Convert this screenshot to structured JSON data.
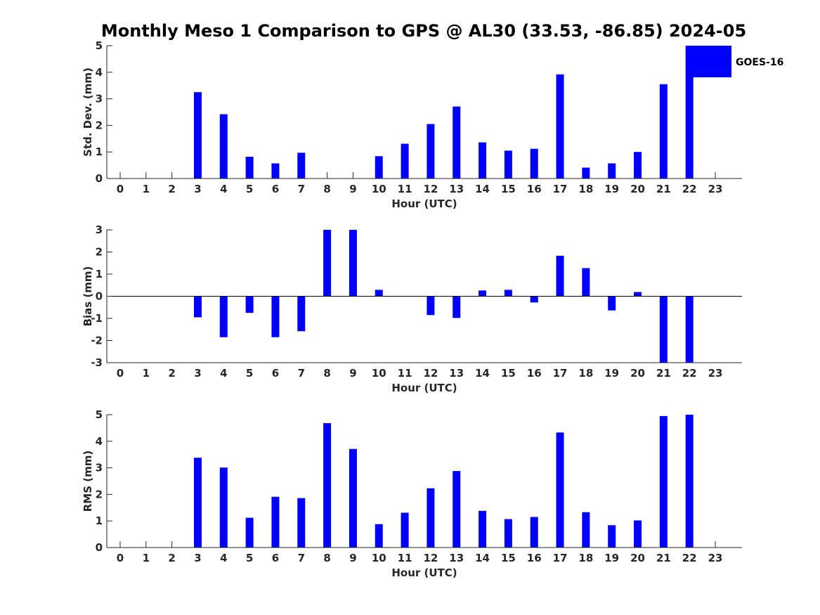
{
  "chart_data": {
    "type": "bar",
    "title": "Monthly Meso 1 Comparison to GPS @ AL30 (33.53, -86.85) 2024-05",
    "legend": {
      "label": "GOES-16",
      "color": "#0000ff",
      "placement": "top-right"
    },
    "categories": [
      "0",
      "1",
      "2",
      "3",
      "4",
      "5",
      "6",
      "7",
      "8",
      "9",
      "10",
      "11",
      "12",
      "13",
      "14",
      "15",
      "16",
      "17",
      "18",
      "19",
      "20",
      "21",
      "22",
      "23"
    ],
    "panels": [
      {
        "ylabel": "Std. Dev. (mm)",
        "xlabel": "Hour (UTC)",
        "ylim": [
          0,
          5
        ],
        "yticks": [
          "0",
          "1",
          "2",
          "3",
          "4",
          "5"
        ],
        "zero_line": false,
        "values": [
          0,
          0,
          0,
          3.25,
          2.42,
          0.82,
          0.57,
          0.97,
          0,
          0,
          0.84,
          1.31,
          2.05,
          2.71,
          1.36,
          1.05,
          1.12,
          3.92,
          0.41,
          0.57,
          1.0,
          3.55,
          5.0,
          0
        ]
      },
      {
        "ylabel": "Bias (mm)",
        "xlabel": "Hour (UTC)",
        "ylim": [
          -3,
          3
        ],
        "yticks": [
          "-3",
          "-2",
          "-1",
          "0",
          "1",
          "2",
          "3"
        ],
        "zero_line": true,
        "values": [
          0,
          0,
          0,
          -0.95,
          -1.85,
          -0.75,
          -1.85,
          -1.58,
          3.0,
          3.0,
          0.29,
          0,
          -0.85,
          -0.98,
          0.26,
          0.29,
          -0.28,
          1.83,
          1.27,
          -0.64,
          0.19,
          -3.0,
          -3.0,
          0
        ]
      },
      {
        "ylabel": "RMS (mm)",
        "xlabel": "Hour (UTC)",
        "ylim": [
          0,
          5
        ],
        "yticks": [
          "0",
          "1",
          "2",
          "3",
          "4",
          "5"
        ],
        "zero_line": false,
        "values": [
          0,
          0,
          0,
          3.38,
          3.01,
          1.12,
          1.91,
          1.86,
          4.68,
          3.71,
          0.88,
          1.31,
          2.23,
          2.88,
          1.38,
          1.07,
          1.15,
          4.33,
          1.33,
          0.84,
          1.02,
          4.95,
          5.0,
          0
        ]
      }
    ]
  }
}
